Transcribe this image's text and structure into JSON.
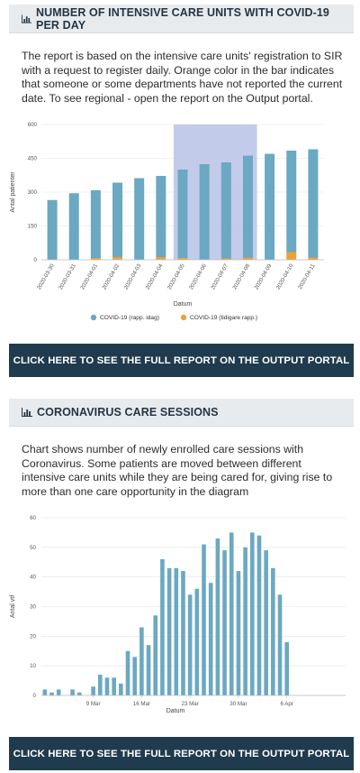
{
  "section1": {
    "title": "NUMBER OF INTENSIVE CARE UNITS WITH COVID-19 PER DAY",
    "description": "The report is based on the intensive care units' registration to SIR with a request to register daily. Orange color in the bar indicates that someone or some departments have not reported the current date. To see regional - open the report on the Output portal.",
    "cta": "CLICK HERE TO SEE THE FULL REPORT ON THE OUTPUT PORTAL",
    "icon": "bar-chart-icon"
  },
  "section2": {
    "title": "CORONAVIRUS CARE SESSIONS",
    "description": "Chart shows number of newly enrolled care sessions with Coronavirus. Some patients are moved between different intensive care units while they are being cared for, giving rise to more than one care opportunity in the diagram",
    "cta": "CLICK HERE TO SEE THE FULL REPORT ON THE OUTPUT PORTAL",
    "icon": "bar-chart-icon"
  },
  "colors": {
    "bar_blue": "#6ba8c2",
    "bar_orange": "#e9a13b",
    "highlight": "#b7c2e6",
    "cta_bg": "#1f3b4d",
    "header_bg": "#e7ebee"
  },
  "chart_data": [
    {
      "type": "bar",
      "stacked": true,
      "title": "",
      "xlabel": "Datum",
      "ylabel": "Antal patienter",
      "ylim": [
        0,
        600
      ],
      "yticks": [
        0,
        150,
        300,
        450,
        600
      ],
      "categories": [
        "2020-03-30",
        "2020-03-31",
        "2020-04-01",
        "2020-04-02",
        "2020-04-03",
        "2020-04-04",
        "2020-04-05",
        "2020-04-06",
        "2020-04-07",
        "2020-04-08",
        "2020-04-09",
        "2020-04-10",
        "2020-04-11"
      ],
      "series": [
        {
          "name": "COVID-19 (rapp. idag)",
          "color": "#6ba8c2",
          "values": [
            265,
            295,
            300,
            330,
            362,
            360,
            392,
            424,
            426,
            452,
            470,
            450,
            480
          ]
        },
        {
          "name": "COVID-19 (tidigare rapp.)",
          "color": "#e9a13b",
          "values": [
            0,
            0,
            8,
            12,
            0,
            12,
            8,
            0,
            6,
            10,
            0,
            34,
            10
          ]
        }
      ],
      "highlight_range": [
        "2020-04-05",
        "2020-04-08"
      ],
      "legend_position": "bottom"
    },
    {
      "type": "bar",
      "title": "",
      "xlabel": "Datum",
      "ylabel": "Antal vtf",
      "ylim": [
        0,
        60
      ],
      "yticks": [
        0,
        10,
        20,
        30,
        40,
        50,
        60
      ],
      "tick_labels": [
        "9 Mar",
        "16 Mar",
        "23 Mar",
        "30 Mar",
        "6 Apr"
      ],
      "tick_days": [
        7,
        14,
        21,
        28,
        35
      ],
      "day_offsets_from_first": [
        0,
        1,
        2,
        3,
        4,
        5,
        6,
        7,
        8,
        9,
        10,
        11,
        12,
        13,
        14,
        15,
        16,
        17,
        18,
        19,
        20,
        21,
        22,
        23,
        24,
        25,
        26,
        27,
        28,
        29,
        30,
        31,
        32,
        33,
        34,
        35,
        36,
        37,
        38,
        39,
        40,
        41,
        42,
        43
      ],
      "values": [
        2,
        1,
        2,
        0,
        2,
        1,
        0,
        3,
        7,
        6,
        6,
        4,
        15,
        13,
        23,
        17,
        27,
        46,
        43,
        43,
        42,
        34,
        36,
        51,
        38,
        53,
        49,
        55,
        42,
        50,
        55,
        54,
        49,
        43,
        34,
        18,
        null,
        null,
        null,
        null,
        null,
        null,
        null,
        null
      ],
      "series": [
        {
          "name": "",
          "color": "#6ba8c2"
        }
      ]
    }
  ]
}
